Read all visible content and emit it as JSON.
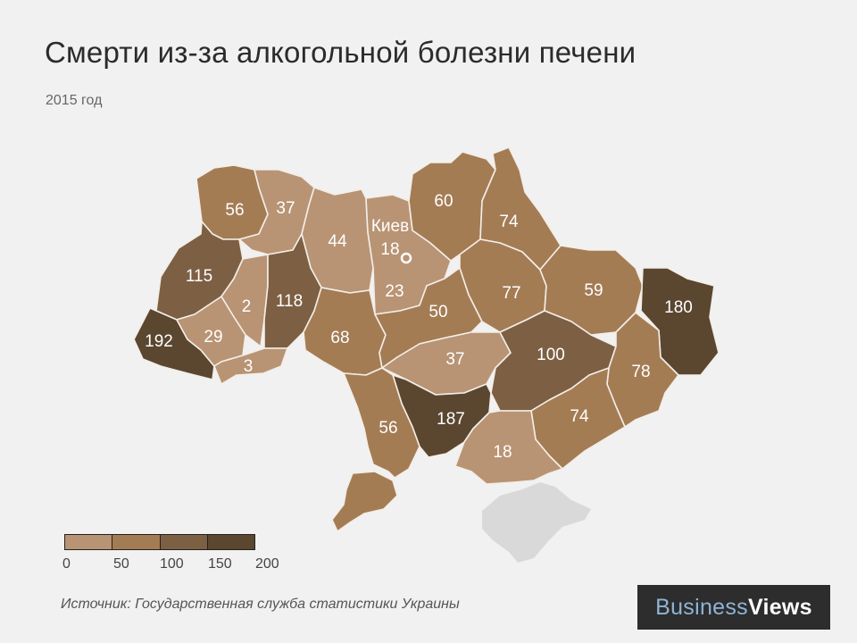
{
  "title": "Смерти из-за алкогольной болезни печени",
  "subtitle": "2015 год",
  "map": {
    "capital_label": "Киев",
    "regions": [
      {
        "id": "volyn",
        "value": 56
      },
      {
        "id": "rivne",
        "value": 37
      },
      {
        "id": "zhytomyr",
        "value": 44
      },
      {
        "id": "kyiv-city",
        "value": 18
      },
      {
        "id": "kyiv-oblast",
        "value": 23
      },
      {
        "id": "chernihiv",
        "value": 60
      },
      {
        "id": "sumy",
        "value": 74
      },
      {
        "id": "lviv",
        "value": 115
      },
      {
        "id": "ternopil",
        "value": 2
      },
      {
        "id": "khmelnytskyi",
        "value": 118
      },
      {
        "id": "vinnytsia",
        "value": 68
      },
      {
        "id": "cherkasy",
        "value": 50
      },
      {
        "id": "poltava",
        "value": 77
      },
      {
        "id": "kharkiv",
        "value": 59
      },
      {
        "id": "luhansk",
        "value": 180
      },
      {
        "id": "zakarpattia",
        "value": 192
      },
      {
        "id": "ivano-frankivsk",
        "value": 29
      },
      {
        "id": "chernivtsi",
        "value": 3
      },
      {
        "id": "kirovohrad",
        "value": 37
      },
      {
        "id": "dnipropetrovsk",
        "value": 100
      },
      {
        "id": "donetsk",
        "value": 78
      },
      {
        "id": "zaporizhzhia",
        "value": 74
      },
      {
        "id": "mykolaiv",
        "value": 187
      },
      {
        "id": "odesa",
        "value": 56
      },
      {
        "id": "kherson",
        "value": 18
      }
    ]
  },
  "legend": {
    "ticks": [
      "0",
      "50",
      "100",
      "150",
      "200"
    ],
    "colors": [
      "#b89474",
      "#a47c54",
      "#7d5f43",
      "#5b4630"
    ]
  },
  "source": "Источник: Государственная служба статистики Украины",
  "logo": {
    "part1": "Business",
    "part2": "Views"
  }
}
